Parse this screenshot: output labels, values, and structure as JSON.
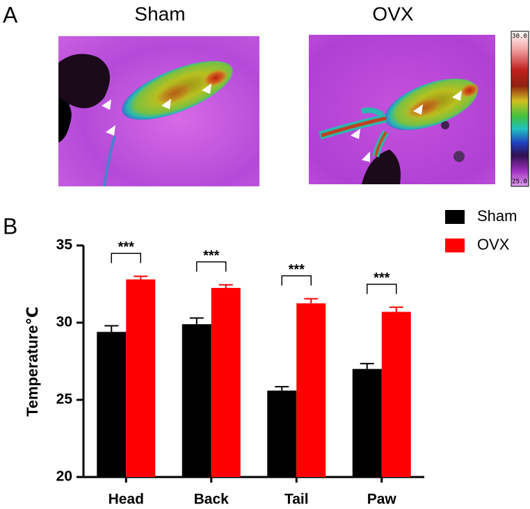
{
  "panel_labels": [
    "A",
    "B"
  ],
  "images": [
    {
      "title": "Sham"
    },
    {
      "title": "OVX"
    }
  ],
  "colorbar": {
    "ticks": [
      {
        "value": 30,
        "label": "30.0"
      },
      {
        "value": 25,
        "label": "25.0"
      }
    ]
  },
  "chart_data": {
    "type": "bar",
    "ylabel": "Temperature℃",
    "categories": [
      "Head",
      "Back",
      "Tail",
      "Paw"
    ],
    "series": [
      {
        "name": "Sham",
        "color": "#000000",
        "values": [
          29.4,
          29.9,
          25.6,
          27.0
        ],
        "errors": [
          0.4,
          0.4,
          0.25,
          0.35
        ]
      },
      {
        "name": "OVX",
        "color": "#ff0000",
        "values": [
          32.8,
          32.25,
          31.25,
          30.7
        ],
        "errors": [
          0.2,
          0.2,
          0.3,
          0.3
        ]
      }
    ],
    "significance": [
      "***",
      "***",
      "***",
      "***"
    ],
    "ylim": [
      20,
      35
    ],
    "yticks": [
      20,
      25,
      30,
      35
    ],
    "legend": "upper right"
  }
}
